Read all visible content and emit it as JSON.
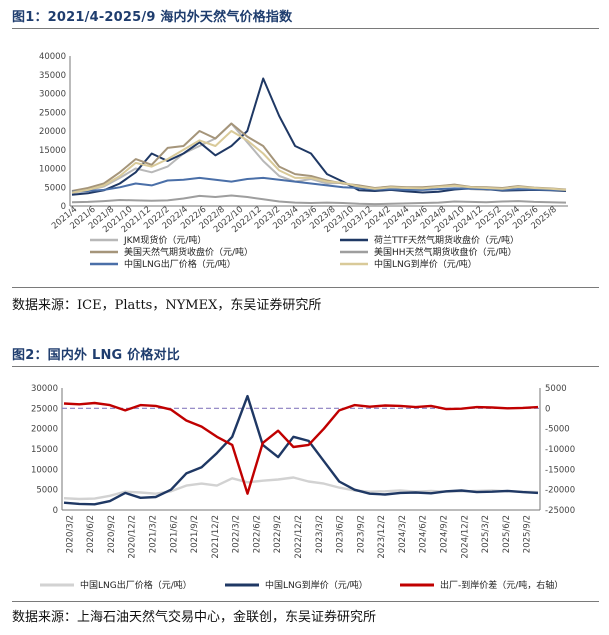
{
  "figure1": {
    "title": "图1：2021/4-2025/9 海内外天然气价格指数",
    "source": "数据来源：ICE，Platts，NYMEX，东吴证券研究所",
    "chart_data": {
      "type": "line",
      "y_ticks": [
        "0",
        "5000",
        "10000",
        "15000",
        "20000",
        "25000",
        "30000",
        "35000",
        "40000"
      ],
      "ylim": [
        0,
        40000
      ],
      "x_labels": [
        "2021/4",
        "2021/6",
        "2021/8",
        "2021/10",
        "2021/12",
        "2022/2",
        "2022/4",
        "2022/6",
        "2022/8",
        "2022/10",
        "2022/12",
        "2023/2",
        "2023/4",
        "2023/6",
        "2023/8",
        "2023/10",
        "2023/12",
        "2024/2",
        "2024/4",
        "2024/6",
        "2024/8",
        "2024/10",
        "2024/12",
        "2025/2",
        "2025/4",
        "2025/6",
        "2025/8"
      ],
      "grid": false,
      "legend_position": "bottom",
      "series": [
        {
          "name": "JKM现货价（元/吨）",
          "color": "#b8b8b8",
          "values": [
            3500,
            4200,
            5200,
            7500,
            10000,
            9000,
            10500,
            14000,
            16000,
            18000,
            22000,
            17000,
            12000,
            8000,
            6500,
            7200,
            6000,
            6200,
            5000,
            4300,
            5200,
            4800,
            4800,
            5200,
            5700,
            4500,
            4300,
            4600,
            5200,
            4600,
            4500,
            4200
          ]
        },
        {
          "name": "荷兰TTF天然气期货收盘价（元/吨）",
          "color": "#1f3864",
          "values": [
            3000,
            3400,
            4200,
            6000,
            9000,
            14000,
            12000,
            14000,
            17000,
            13500,
            16000,
            20000,
            34000,
            24000,
            16000,
            14000,
            8500,
            6500,
            4200,
            4000,
            4300,
            3900,
            3600,
            3800,
            4400,
            4700,
            4500,
            4100,
            4200,
            4300,
            4200,
            4000
          ]
        },
        {
          "name": "美国天然气期货收盘价（元/吨）",
          "color": "#a5957a",
          "values": [
            4000,
            4800,
            6000,
            9000,
            12500,
            11000,
            15500,
            16000,
            20000,
            18000,
            22000,
            18500,
            16000,
            10500,
            8500,
            8000,
            6800,
            6000,
            5500,
            4800,
            5200,
            5000,
            5000,
            5300,
            5700,
            5100,
            5000,
            4800,
            5300,
            4900,
            4700,
            4400
          ]
        },
        {
          "name": "美国HH天然气期货收盘价（元/吨）",
          "color": "#9e9e9e",
          "values": [
            1000,
            1100,
            1300,
            1600,
            1500,
            1400,
            1500,
            2000,
            2700,
            2400,
            2800,
            2400,
            1800,
            1200,
            900,
            800,
            900,
            800,
            600,
            500,
            600,
            700,
            800,
            900,
            1200,
            1100,
            1000,
            1200,
            1300,
            1100,
            1000,
            900
          ]
        },
        {
          "name": "中国LNG出厂价格（元/吨）",
          "color": "#4a6fa8",
          "values": [
            3800,
            4000,
            4300,
            5000,
            6000,
            5500,
            6800,
            7000,
            7500,
            7000,
            6500,
            7200,
            7500,
            7000,
            6500,
            6000,
            5500,
            5000,
            4800,
            4400,
            4500,
            4300,
            4300,
            4500,
            4700,
            4600,
            4500,
            4300,
            4500,
            4400,
            4300,
            4200
          ]
        },
        {
          "name": "中国LNG到岸价（元/吨）",
          "color": "#d9ca99",
          "values": [
            3600,
            4300,
            5500,
            8000,
            11500,
            10500,
            12500,
            15000,
            17500,
            16000,
            20000,
            17500,
            14000,
            9500,
            7500,
            7500,
            6500,
            6200,
            5200,
            4600,
            5000,
            4800,
            4700,
            5100,
            5400,
            5000,
            4800,
            4600,
            5100,
            4800,
            4600,
            4300
          ]
        }
      ]
    }
  },
  "figure2": {
    "title": "图2：国内外 LNG 价格对比",
    "source": "数据来源：上海石油天然气交易中心，金联创，东吴证券研究所",
    "chart_data": {
      "type": "line",
      "y_left_ticks": [
        "0",
        "5000",
        "10000",
        "15000",
        "20000",
        "25000",
        "30000"
      ],
      "y_right_ticks": [
        "-25000",
        "-20000",
        "-15000",
        "-10000",
        "-5000",
        "0",
        "5000"
      ],
      "ylim_left": [
        0,
        30000
      ],
      "ylim_right": [
        -25000,
        5000
      ],
      "x_labels": [
        "2020/3/2",
        "2020/6/2",
        "2020/9/2",
        "2020/12/2",
        "2021/3/2",
        "2021/6/2",
        "2021/9/2",
        "2021/12/2",
        "2022/3/2",
        "2022/6/2",
        "2022/9/2",
        "2022/12/2",
        "2023/3/2",
        "2023/6/2",
        "2023/9/2",
        "2023/12/2",
        "2024/3/2",
        "2024/6/2",
        "2024/9/2",
        "2024/12/2",
        "2025/3/2",
        "2025/6/2",
        "2025/9/2"
      ],
      "reference_line": {
        "axis": "right",
        "value": 0,
        "style": "dashed",
        "color": "#8a7fc0"
      },
      "grid": false,
      "legend_position": "bottom",
      "series": [
        {
          "name": "中国LNG出厂价格（元/吨）",
          "axis": "left",
          "color": "#d2d2d2",
          "values": [
            2900,
            2700,
            2800,
            3500,
            4500,
            4300,
            4000,
            4600,
            6000,
            6500,
            6000,
            7800,
            6800,
            7200,
            7500,
            8000,
            7000,
            6500,
            5500,
            4800,
            4500,
            4600,
            4800,
            4500,
            4700,
            4500,
            4600,
            4700,
            4800,
            4600,
            4500,
            4400
          ]
        },
        {
          "name": "中国LNG到岸价（元/吨）",
          "axis": "left",
          "color": "#1f3864",
          "values": [
            1800,
            1500,
            1400,
            2200,
            4200,
            3000,
            3200,
            5000,
            9000,
            10500,
            14000,
            18000,
            28000,
            16000,
            13000,
            18000,
            17000,
            12000,
            7000,
            5000,
            4000,
            3800,
            4200,
            4300,
            4100,
            4600,
            4800,
            4400,
            4500,
            4700,
            4400,
            4200
          ]
        },
        {
          "name": "出厂-到岸价差（元/吨，右轴）",
          "axis": "right",
          "color": "#c00000",
          "values": [
            1200,
            1000,
            1300,
            800,
            -500,
            800,
            600,
            -300,
            -3000,
            -4500,
            -7000,
            -9000,
            -21000,
            -8500,
            -5500,
            -9500,
            -9000,
            -5000,
            -500,
            800,
            400,
            700,
            600,
            300,
            600,
            -200,
            -100,
            300,
            200,
            0,
            100,
            300
          ]
        }
      ]
    }
  }
}
